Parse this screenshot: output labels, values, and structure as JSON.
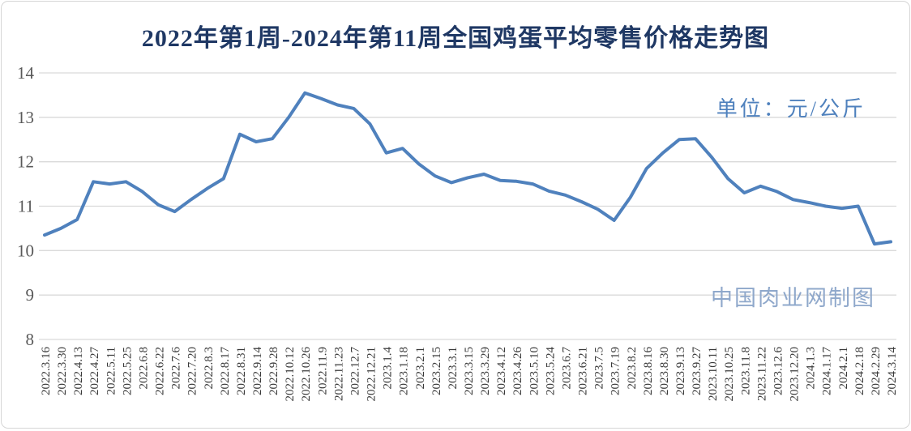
{
  "chart_data": {
    "type": "line",
    "title": "2022年第1周-2024年第11周全国鸡蛋平均零售价格走势图",
    "unit_label": "单位：元/公斤",
    "watermark": "中国肉业网制图",
    "ylabel": "",
    "xlabel": "",
    "ylim": [
      8,
      14
    ],
    "yticks": [
      8,
      9,
      10,
      11,
      12,
      13,
      14
    ],
    "grid": true,
    "legend": "none",
    "categories": [
      "2022.3.16",
      "2022.3.30",
      "2022.4.13",
      "2022.4.27",
      "2022.5.11",
      "2022.5.25",
      "2022.6.8",
      "2022.6.22",
      "2022.7.6",
      "2022.7.20",
      "2022.8.3",
      "2022.8.17",
      "2022.8.31",
      "2022.9.14",
      "2022.9.28",
      "2022.10.12",
      "2022.10.26",
      "2022.11.9",
      "2022.11.23",
      "2022.12.7",
      "2022.12.21",
      "2023.1.4",
      "2023.1.18",
      "2023.2.1",
      "2023.2.15",
      "2023.3.1",
      "2023.3.15",
      "2023.3.29",
      "2023.4.12",
      "2023.4.26",
      "2023.5.10",
      "2023.5.24",
      "2023.6.7",
      "2023.6.21",
      "2023.7.5",
      "2023.7.19",
      "2023.8.2",
      "2023.8.16",
      "2023.8.30",
      "2023.9.13",
      "2023.9.27",
      "2023.10.11",
      "2023.10.25",
      "2023.11.8",
      "2023.11.22",
      "2023.12.6",
      "2023.12.20",
      "2024.1.3",
      "2024.1.17",
      "2024.2.1",
      "2024.2.18",
      "2024.2.29",
      "2024.3.14"
    ],
    "values": [
      10.35,
      10.5,
      10.7,
      11.55,
      11.5,
      11.55,
      11.33,
      11.03,
      10.88,
      11.15,
      11.4,
      11.62,
      12.62,
      12.45,
      12.52,
      13.0,
      13.55,
      13.42,
      13.28,
      13.2,
      12.85,
      12.2,
      12.3,
      11.95,
      11.68,
      11.53,
      11.64,
      11.72,
      11.58,
      11.56,
      11.5,
      11.34,
      11.25,
      11.1,
      10.93,
      10.68,
      11.2,
      11.85,
      12.2,
      12.5,
      12.52,
      12.1,
      11.62,
      11.3,
      11.45,
      11.33,
      11.15,
      11.08,
      11.0,
      10.95,
      11.0,
      10.15,
      10.2
    ],
    "colors": {
      "line": "#4f81bd",
      "title": "#1f3864",
      "unit_label": "#4f81bd",
      "watermark": "#8fa8cb",
      "y_tick_label": "#595959",
      "x_tick_label": "#3a3a3a",
      "gridline": "#d9d9d9",
      "frame_border": "#d6d6d6"
    }
  }
}
